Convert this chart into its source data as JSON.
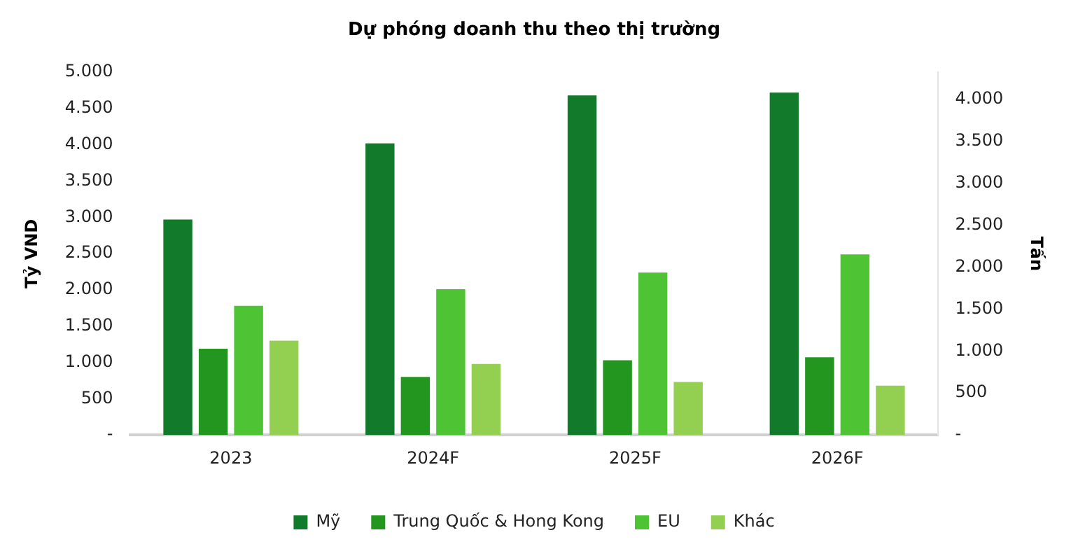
{
  "chart_data": {
    "type": "bar",
    "title": "Dự phóng doanh thu theo thị trường",
    "ylabel": "Tỷ VND",
    "y2label": "Tấn",
    "categories": [
      "2023",
      "2024F",
      "2025F",
      "2026F"
    ],
    "series": [
      {
        "name": "Mỹ",
        "color": "#127a2b",
        "values": [
          2970,
          4020,
          4680,
          4720
        ]
      },
      {
        "name": "Trung Quốc & Hong Kong",
        "color": "#23961f",
        "values": [
          1190,
          800,
          1030,
          1070
        ]
      },
      {
        "name": "EU",
        "color": "#4ec435",
        "values": [
          1780,
          2010,
          2240,
          2490
        ]
      },
      {
        "name": "Khác",
        "color": "#93d052",
        "values": [
          1300,
          980,
          730,
          680
        ]
      }
    ],
    "ylim": [
      0,
      5000
    ],
    "yticks": [
      {
        "value": 0,
        "label": "-"
      },
      {
        "value": 500,
        "label": "500"
      },
      {
        "value": 1000,
        "label": "1.000"
      },
      {
        "value": 1500,
        "label": "1.500"
      },
      {
        "value": 2000,
        "label": "2.000"
      },
      {
        "value": 2500,
        "label": "2.500"
      },
      {
        "value": 3000,
        "label": "3.000"
      },
      {
        "value": 3500,
        "label": "3.500"
      },
      {
        "value": 4000,
        "label": "4.000"
      },
      {
        "value": 4500,
        "label": "4.500"
      },
      {
        "value": 5000,
        "label": "5.000"
      }
    ],
    "y2lim": [
      0,
      4320
    ],
    "y2ticks": [
      {
        "value": 0,
        "label": "-"
      },
      {
        "value": 500,
        "label": "500"
      },
      {
        "value": 1000,
        "label": "1.000"
      },
      {
        "value": 1500,
        "label": "1.500"
      },
      {
        "value": 2000,
        "label": "2.000"
      },
      {
        "value": 2500,
        "label": "2.500"
      },
      {
        "value": 3000,
        "label": "3.000"
      },
      {
        "value": 3500,
        "label": "3.500"
      },
      {
        "value": 4000,
        "label": "4.000"
      }
    ],
    "grid": false,
    "legend": "bottom"
  }
}
